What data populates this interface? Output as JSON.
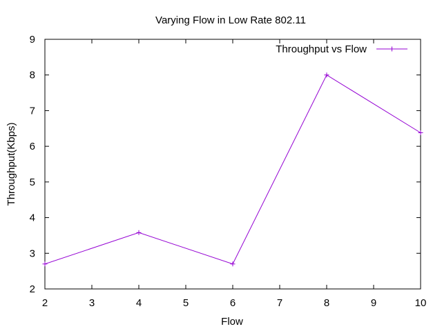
{
  "chart_data": {
    "type": "line",
    "title": "Varying Flow in Low Rate 802.11",
    "xlabel": "Flow",
    "ylabel": "Throughput(Kbps)",
    "xlim": [
      2,
      10
    ],
    "ylim": [
      2,
      9
    ],
    "x_ticks": [
      "2",
      "3",
      "4",
      "5",
      "6",
      "7",
      "8",
      "9",
      "10"
    ],
    "y_ticks": [
      "2",
      "3",
      "4",
      "5",
      "6",
      "7",
      "8",
      "9"
    ],
    "grid": false,
    "legend_position": "top-right",
    "series": [
      {
        "name": "Throughput vs Flow",
        "color": "#9400d3",
        "marker": "plus",
        "x": [
          2,
          4,
          6,
          8,
          10
        ],
        "y": [
          2.7,
          3.58,
          2.7,
          8.0,
          6.38
        ]
      }
    ]
  }
}
